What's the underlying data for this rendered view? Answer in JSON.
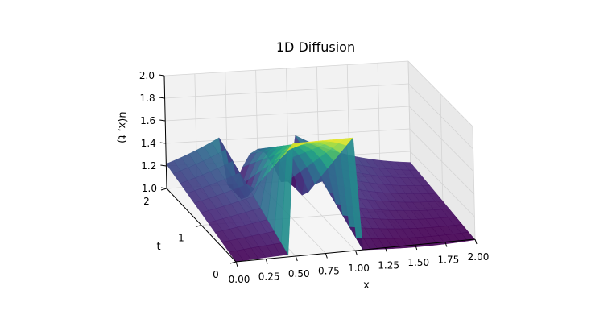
{
  "chart_data": {
    "type": "surface",
    "title": "1D Diffusion",
    "xlabel": "x",
    "ylabel": "t",
    "zlabel": "u(x, t)",
    "xlim": [
      0.0,
      2.0
    ],
    "ylim": [
      0.0,
      2.0
    ],
    "zlim": [
      1.0,
      2.0
    ],
    "x_ticks": [
      "0.00",
      "0.25",
      "0.50",
      "0.75",
      "1.00",
      "1.25",
      "1.50",
      "1.75",
      "2.00"
    ],
    "y_ticks": [
      "0",
      "1",
      "2"
    ],
    "z_ticks": [
      "1.0",
      "1.2",
      "1.4",
      "1.6",
      "1.8",
      "2.0"
    ],
    "colormap": "viridis",
    "grid": true,
    "initial_condition": {
      "pulse_start": 0.5,
      "pulse_end": 1.0,
      "pulse_value": 2.0,
      "base_value": 1.0
    },
    "profile_samples": [
      {
        "x": 0.0,
        "t_at_back": 1.18
      },
      {
        "x": 0.5,
        "t_at_back": 1.35
      },
      {
        "x": 0.75,
        "t_at_back": 1.4
      },
      {
        "x": 1.0,
        "t_at_back": 1.35
      },
      {
        "x": 1.5,
        "t_at_back": 1.2
      },
      {
        "x": 2.0,
        "t_at_back": 1.02
      }
    ]
  }
}
